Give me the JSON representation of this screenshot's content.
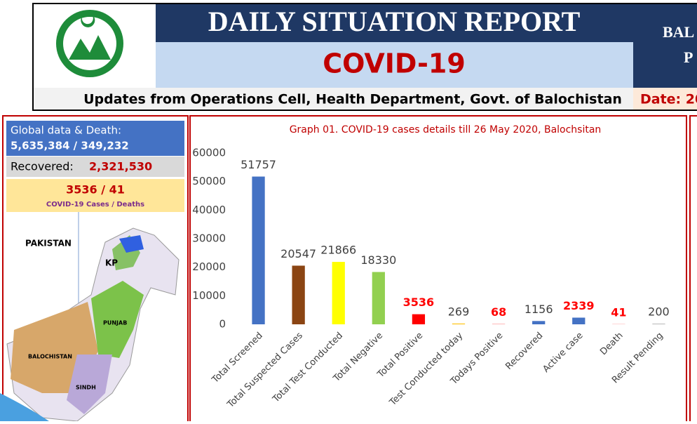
{
  "header": {
    "title": "DAILY SITUATION REPORT",
    "subtitle": "COVID-19",
    "updates": "Updates from Operations Cell, Health Department, Govt. of Balochistan",
    "date": "Date: 20",
    "right_line1": "BAL",
    "right_line2": "P"
  },
  "summary": {
    "global_label": "Global data & Death:",
    "global_value": "5,635,384 / 349,232",
    "recovered_label": "Recovered:",
    "recovered_value": "2,321,530",
    "cases_value": "3536 / 41",
    "cases_label": "COVID-19 Cases / Deaths"
  },
  "map": {
    "labels": [
      "PAKISTAN",
      "KP",
      "PUNJAB",
      "BALOCHISTAN",
      "SINDH"
    ]
  },
  "chart_data": {
    "type": "bar",
    "title": "Graph 01. COVID-19 cases details till 26 May 2020, Balochsitan",
    "categories": [
      "Total Screened",
      "Total Suspected Cases",
      "Total Test Conducted",
      "Total Negative",
      "Total Positive",
      "Test Conducted today",
      "Todays Positive",
      "Recovered",
      "Active case",
      "Death",
      "Result Pending"
    ],
    "values": [
      51757,
      20547,
      21866,
      18330,
      3536,
      269,
      68,
      1156,
      2339,
      41,
      200
    ],
    "colors": [
      "#4472c4",
      "#8b4513",
      "#ffff00",
      "#92d050",
      "#ff0000",
      "#ffc000",
      "#ff0000",
      "#4472c4",
      "#4472c4",
      "#ff0000",
      "#a5a5a5"
    ],
    "value_label_colors": [
      "#404040",
      "#404040",
      "#404040",
      "#404040",
      "#ff0000",
      "#404040",
      "#ff0000",
      "#404040",
      "#ff0000",
      "#ff0000",
      "#404040"
    ],
    "ylim": [
      0,
      60000
    ],
    "yticks": [
      0,
      10000,
      20000,
      30000,
      40000,
      50000,
      60000
    ]
  }
}
